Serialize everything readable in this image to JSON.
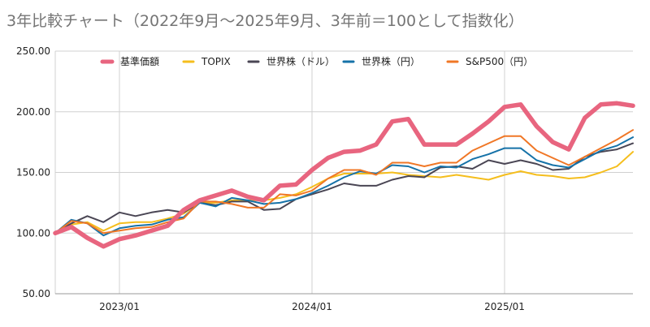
{
  "chart_data": {
    "type": "line",
    "title": "3年比較チャート（2022年9月〜2025年9月、3年前＝100として指数化）",
    "xlabel": "",
    "ylabel": "",
    "x": [
      "2022-09",
      "2022-10",
      "2022-11",
      "2022-12",
      "2023-01",
      "2023-02",
      "2023-03",
      "2023-04",
      "2023-05",
      "2023-06",
      "2023-07",
      "2023-08",
      "2023-09",
      "2023-10",
      "2023-11",
      "2023-12",
      "2024-01",
      "2024-02",
      "2024-03",
      "2024-04",
      "2024-05",
      "2024-06",
      "2024-07",
      "2024-08",
      "2024-09",
      "2024-10",
      "2024-11",
      "2024-12",
      "2025-01",
      "2025-02",
      "2025-03",
      "2025-04",
      "2025-05",
      "2025-06",
      "2025-07",
      "2025-08",
      "2025-09"
    ],
    "x_ticks": [
      "2023/01",
      "2024/01",
      "2025/01"
    ],
    "y_ticks": [
      "50.00",
      "100.00",
      "150.00",
      "200.00",
      "250.00"
    ],
    "ylim": [
      50,
      250
    ],
    "grid": true,
    "legend_position": "top",
    "series": [
      {
        "name": "基準価額",
        "color": "#e8657f",
        "width": 5.5,
        "values": [
          100,
          105,
          96,
          89,
          95,
          98,
          102,
          106,
          119,
          127,
          131,
          135,
          130,
          127,
          139,
          140,
          152,
          162,
          167,
          168,
          173,
          192,
          194,
          173,
          173,
          173,
          182,
          192,
          204,
          206,
          188,
          175,
          169,
          195,
          206,
          207,
          205
        ]
      },
      {
        "name": "TOPIX",
        "color": "#f5be1d",
        "width": 2,
        "values": [
          100,
          107,
          109,
          102,
          108,
          109,
          109,
          112,
          116,
          125,
          125,
          127,
          127,
          127,
          129,
          132,
          138,
          145,
          149,
          149,
          149,
          150,
          148,
          147,
          146,
          148,
          146,
          144,
          148,
          151,
          148,
          147,
          145,
          146,
          150,
          155,
          167
        ]
      },
      {
        "name": "世界株（ドル）",
        "color": "#4a4654",
        "width": 2,
        "values": [
          100,
          108,
          114,
          109,
          117,
          114,
          117,
          119,
          117,
          125,
          123,
          126,
          126,
          119,
          120,
          128,
          132,
          136,
          141,
          139,
          139,
          144,
          147,
          146,
          154,
          155,
          153,
          160,
          157,
          160,
          157,
          152,
          153,
          163,
          167,
          169,
          174
        ]
      },
      {
        "name": "世界株（円）",
        "color": "#1672a8",
        "width": 2,
        "values": [
          100,
          111,
          108,
          98,
          104,
          106,
          107,
          111,
          113,
          125,
          122,
          129,
          127,
          124,
          125,
          128,
          133,
          139,
          146,
          151,
          149,
          156,
          155,
          150,
          155,
          154,
          161,
          165,
          170,
          170,
          160,
          156,
          154,
          161,
          168,
          172,
          179
        ]
      },
      {
        "name": "S&P500（円）",
        "color": "#f07726",
        "width": 2,
        "values": [
          100,
          110,
          108,
          100,
          102,
          104,
          105,
          109,
          112,
          126,
          126,
          124,
          121,
          121,
          132,
          131,
          135,
          145,
          152,
          152,
          148,
          158,
          158,
          155,
          158,
          158,
          168,
          174,
          180,
          180,
          168,
          162,
          156,
          163,
          170,
          177,
          185
        ]
      }
    ]
  }
}
